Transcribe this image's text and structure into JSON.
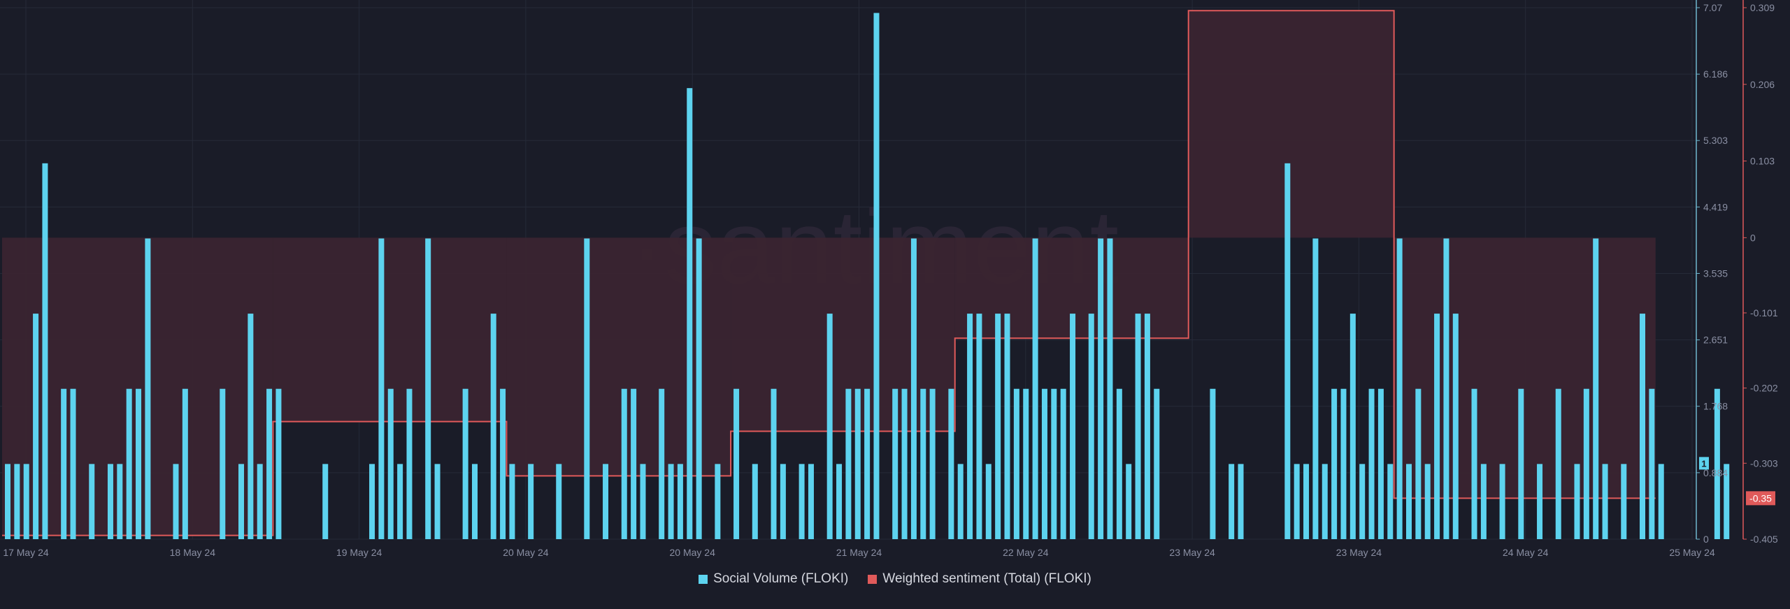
{
  "colors": {
    "background": "#1a1c28",
    "bar": "#5dd3ef",
    "sentiment_line": "#e05a5a",
    "sentiment_fill": "#3a2430",
    "grid": "#262a38",
    "axis_text": "#8a8fa3",
    "watermark": "#2a2535"
  },
  "watermark": "·santiment",
  "legend": {
    "social_volume": "Social Volume (FLOKI)",
    "sentiment": "Weighted sentiment (Total) (FLOKI)"
  },
  "badges": {
    "volume_value": "1",
    "sentiment_value": "-0.35"
  },
  "chart_data": {
    "type": "bar",
    "grid": true,
    "legend_position": "bottom",
    "x_tick_labels": [
      "17 May 24",
      "18 May 24",
      "19 May 24",
      "20 May 24",
      "20 May 24",
      "21 May 24",
      "22 May 24",
      "23 May 24",
      "23 May 24",
      "24 May 24",
      "25 May 24"
    ],
    "y_left": {
      "ticks": [
        "0",
        "0.884",
        "1.768",
        "2.651",
        "3.535",
        "4.419",
        "5.303",
        "6.186",
        "7.07"
      ],
      "range": [
        0,
        7.07
      ]
    },
    "y_right": {
      "ticks": [
        "-0.405",
        "-0.303",
        "-0.202",
        "-0.101",
        "0",
        "0.103",
        "0.206",
        "0.309"
      ],
      "range": [
        -0.405,
        0.309
      ]
    },
    "series": [
      {
        "name": "Social Volume (FLOKI)",
        "type": "bar",
        "values": [
          1,
          1,
          1,
          3,
          5,
          0,
          2,
          2,
          0,
          1,
          0,
          1,
          1,
          2,
          2,
          4,
          0,
          0,
          1,
          2,
          0,
          0,
          0,
          2,
          0,
          1,
          3,
          1,
          2,
          2,
          0,
          0,
          0,
          0,
          1,
          0,
          0,
          0,
          0,
          1,
          4,
          2,
          1,
          2,
          0,
          4,
          1,
          0,
          0,
          2,
          1,
          0,
          3,
          2,
          1,
          0,
          1,
          0,
          0,
          1,
          0,
          0,
          4,
          0,
          1,
          0,
          2,
          2,
          1,
          0,
          2,
          1,
          1,
          6,
          4,
          0,
          1,
          0,
          2,
          0,
          1,
          0,
          2,
          1,
          0,
          1,
          1,
          0,
          3,
          1,
          2,
          2,
          2,
          7,
          0,
          2,
          2,
          4,
          2,
          2,
          0,
          2,
          1,
          3,
          3,
          1,
          3,
          3,
          2,
          2,
          4,
          2,
          2,
          2,
          3,
          0,
          3,
          4,
          4,
          2,
          1,
          3,
          3,
          2,
          0,
          0,
          0,
          0,
          0,
          2,
          0,
          1,
          1,
          0,
          0,
          0,
          0,
          5,
          1,
          1,
          4,
          1,
          2,
          2,
          3,
          1,
          2,
          2,
          1,
          4,
          1,
          2,
          1,
          3,
          4,
          3,
          0,
          2,
          1,
          0,
          1,
          0,
          2,
          0,
          1,
          0,
          2,
          0,
          1,
          2,
          4,
          1,
          0,
          1,
          0,
          3,
          2,
          1,
          0,
          0,
          0,
          0,
          0,
          2,
          1
        ],
        "color": "#5dd3ef"
      },
      {
        "name": "Weighted sentiment (Total) (FLOKI)",
        "type": "step-area",
        "steps": [
          {
            "from_bar": 0,
            "to_bar": 28,
            "value": -0.4
          },
          {
            "from_bar": 29,
            "to_bar": 53,
            "value": -0.247
          },
          {
            "from_bar": 54,
            "to_bar": 77,
            "value": -0.32
          },
          {
            "from_bar": 78,
            "to_bar": 101,
            "value": -0.26
          },
          {
            "from_bar": 102,
            "to_bar": 126,
            "value": -0.135
          },
          {
            "from_bar": 127,
            "to_bar": 148,
            "value": 0.305
          },
          {
            "from_bar": 149,
            "to_bar": 176,
            "value": -0.35
          }
        ],
        "fill_baseline": 0,
        "color": "#e05a5a"
      }
    ]
  }
}
